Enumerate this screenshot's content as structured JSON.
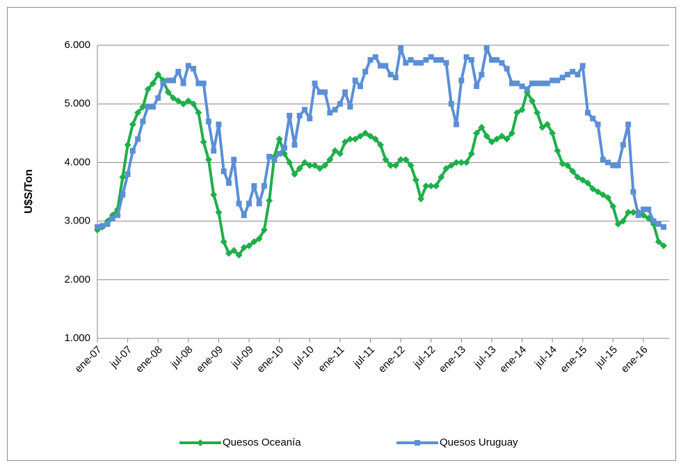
{
  "chart_data": {
    "type": "line",
    "ylabel": "U$S/Ton",
    "categories": [
      "ene-07",
      null,
      null,
      null,
      null,
      null,
      "jul-07",
      null,
      null,
      null,
      null,
      null,
      "ene-08",
      null,
      null,
      null,
      null,
      null,
      "jul-08",
      null,
      null,
      null,
      null,
      null,
      "ene-09",
      null,
      null,
      null,
      null,
      null,
      "jul-09",
      null,
      null,
      null,
      null,
      null,
      "ene-10",
      null,
      null,
      null,
      null,
      null,
      "jul-10",
      null,
      null,
      null,
      null,
      null,
      "ene-11",
      null,
      null,
      null,
      null,
      null,
      "jul-11",
      null,
      null,
      null,
      null,
      null,
      "ene-12",
      null,
      null,
      null,
      null,
      null,
      "jul-12",
      null,
      null,
      null,
      null,
      null,
      "ene-13",
      null,
      null,
      null,
      null,
      null,
      "jul-13",
      null,
      null,
      null,
      null,
      null,
      "ene-14",
      null,
      null,
      null,
      null,
      null,
      "jul-14",
      null,
      null,
      null,
      null,
      null,
      "ene-15",
      null,
      null,
      null,
      null,
      null,
      "jul-15",
      null,
      null,
      null,
      null,
      null,
      "ene-16",
      null,
      null,
      null,
      null
    ],
    "series": [
      {
        "name": "Quesos Oceanía",
        "color": "#1fae4a",
        "marker": "diamond",
        "values": [
          2850,
          2900,
          3000,
          3100,
          3200,
          3750,
          4300,
          4650,
          4850,
          4950,
          5250,
          5350,
          5500,
          5400,
          5200,
          5100,
          5050,
          5000,
          5050,
          5000,
          4850,
          4350,
          4050,
          3450,
          3150,
          2650,
          2450,
          2500,
          2420,
          2550,
          2580,
          2650,
          2700,
          2850,
          3350,
          4100,
          4400,
          4150,
          4000,
          3800,
          3900,
          4000,
          3950,
          3950,
          3900,
          3950,
          4050,
          4200,
          4150,
          4350,
          4400,
          4400,
          4450,
          4500,
          4450,
          4400,
          4300,
          4050,
          3950,
          3950,
          4050,
          4050,
          3950,
          3700,
          3380,
          3600,
          3600,
          3600,
          3750,
          3900,
          3950,
          4000,
          4000,
          4000,
          4150,
          4500,
          4600,
          4450,
          4350,
          4400,
          4450,
          4400,
          4500,
          4850,
          4900,
          5200,
          5050,
          4850,
          4600,
          4650,
          4500,
          4200,
          3980,
          3950,
          3850,
          3750,
          3700,
          3650,
          3550,
          3500,
          3450,
          3400,
          3250,
          2950,
          3000,
          3150,
          3150,
          3150,
          3100,
          3050,
          2950,
          2650,
          2580
        ]
      },
      {
        "name": "Quesos Uruguay",
        "color": "#5b8fd6",
        "marker": "square",
        "values": [
          2900,
          2920,
          2950,
          3050,
          3100,
          3450,
          3800,
          4200,
          4400,
          4700,
          4950,
          4950,
          5100,
          5350,
          5400,
          5400,
          5550,
          5350,
          5650,
          5600,
          5350,
          5350,
          4700,
          4200,
          4650,
          3850,
          3650,
          4050,
          3300,
          3100,
          3300,
          3600,
          3300,
          3600,
          4100,
          4050,
          4150,
          4250,
          4800,
          4300,
          4800,
          4900,
          4750,
          5350,
          5200,
          5200,
          4850,
          4900,
          5000,
          5200,
          4950,
          5400,
          5300,
          5550,
          5750,
          5800,
          5650,
          5650,
          5500,
          5450,
          5950,
          5700,
          5750,
          5700,
          5700,
          5750,
          5800,
          5750,
          5750,
          5700,
          5000,
          4650,
          5400,
          5800,
          5750,
          5300,
          5500,
          5950,
          5750,
          5750,
          5700,
          5600,
          5350,
          5350,
          5300,
          5250,
          5350,
          5350,
          5350,
          5350,
          5400,
          5400,
          5450,
          5500,
          5550,
          5500,
          5650,
          4850,
          4750,
          4650,
          4050,
          4000,
          3950,
          3950,
          4300,
          4650,
          3500,
          3100,
          3200,
          3200,
          3000,
          2950,
          2900
        ]
      }
    ],
    "ylim": [
      1000,
      6000
    ],
    "yticks": [
      {
        "value": 1000,
        "label": "1.000"
      },
      {
        "value": 2000,
        "label": "2.000"
      },
      {
        "value": 3000,
        "label": "3.000"
      },
      {
        "value": 4000,
        "label": "4.000"
      },
      {
        "value": 5000,
        "label": "5.000"
      },
      {
        "value": 6000,
        "label": "6.000"
      }
    ],
    "grid": true
  }
}
